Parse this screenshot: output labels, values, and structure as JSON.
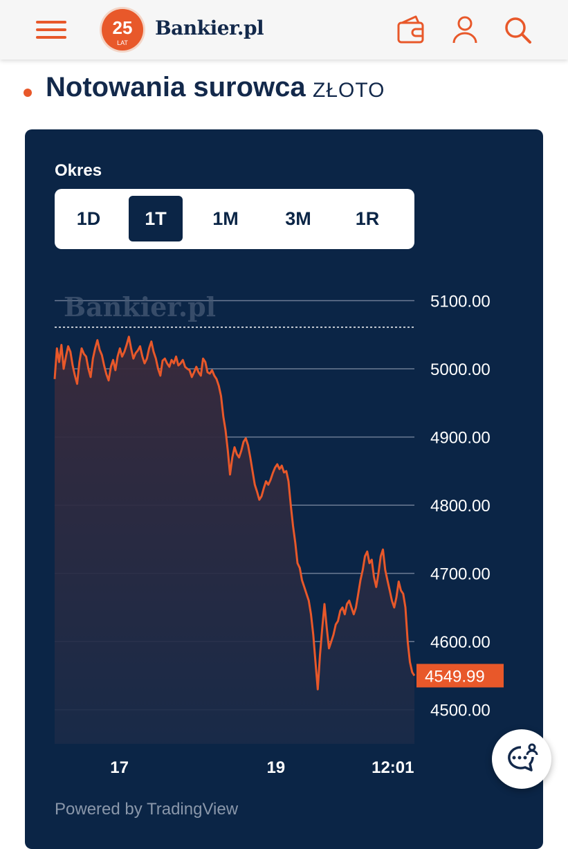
{
  "header": {
    "logo_badge_number": "25",
    "logo_badge_sub": "LAT",
    "logo_text": "Bankier.pl",
    "menu_icon": "hamburger-menu-icon",
    "wallet_icon": "wallet-icon",
    "user_icon": "user-icon",
    "search_icon": "search-icon"
  },
  "page": {
    "title": "Notowania surowca",
    "subtitle": "ZŁOTO"
  },
  "period": {
    "label": "Okres",
    "options": [
      "1D",
      "1T",
      "1M",
      "3M",
      "1R"
    ],
    "selected": "1T"
  },
  "watermark": "Bankier.pl",
  "footer": {
    "powered": "Powered by TradingView",
    "chat_icon": "chat-support-icon"
  },
  "colors": {
    "navy": "#0b2546",
    "accent": "#e8582a",
    "title": "#13294b"
  },
  "chart_data": {
    "type": "area",
    "last_price_label": "4549.99",
    "ylim": [
      4450,
      5135
    ],
    "yticks": [
      "5100.00",
      "5000.00",
      "4900.00",
      "4800.00",
      "4700.00",
      "4600.00",
      "4500.00"
    ],
    "ytick_values": [
      5100,
      5000,
      4900,
      4800,
      4700,
      4600,
      4500
    ],
    "xtick_labels": [
      "17",
      "19",
      "12:01"
    ],
    "xtick_positions": [
      0.18,
      0.615,
      0.94
    ],
    "dotted_reference": 5061,
    "series": [
      {
        "values": [
          4985,
          5030,
          5010,
          5035,
          5000,
          5018,
          5033,
          5025,
          5005,
          4990,
          4978,
          5010,
          5030,
          5022,
          5018,
          5000,
          4988,
          5015,
          5030,
          5042,
          5028,
          5020,
          5005,
          4992,
          4983,
          5003,
          5013,
          4998,
          5018,
          5030,
          5018,
          5025,
          5035,
          5047,
          5030,
          5015,
          5023,
          5027,
          5033,
          5018,
          5008,
          5015,
          5030,
          5040,
          5025,
          5015,
          5000,
          4990,
          5012,
          5015,
          5008,
          5003,
          5013,
          5008,
          5018,
          5005,
          5008,
          5013,
          5003,
          5000,
          4998,
          4988,
          4995,
          5003,
          4995,
          4990,
          5015,
          5010,
          4995,
          4993,
          4998,
          4990,
          4985,
          4975,
          4960,
          4930,
          4910,
          4880,
          4845,
          4870,
          4885,
          4875,
          4870,
          4880,
          4893,
          4898,
          4888,
          4870,
          4850,
          4830,
          4820,
          4808,
          4813,
          4825,
          4835,
          4830,
          4837,
          4847,
          4855,
          4860,
          4853,
          4858,
          4848,
          4850,
          4835,
          4800,
          4770,
          4745,
          4715,
          4708,
          4690,
          4680,
          4670,
          4660,
          4640,
          4610,
          4570,
          4530,
          4580,
          4620,
          4655,
          4620,
          4590,
          4600,
          4610,
          4625,
          4630,
          4645,
          4650,
          4640,
          4655,
          4660,
          4650,
          4640,
          4650,
          4670,
          4690,
          4705,
          4725,
          4732,
          4715,
          4720,
          4695,
          4680,
          4700,
          4725,
          4735,
          4705,
          4690,
          4675,
          4660,
          4650,
          4665,
          4688,
          4675,
          4670,
          4650,
          4600,
          4570,
          4555,
          4550
        ]
      }
    ]
  }
}
